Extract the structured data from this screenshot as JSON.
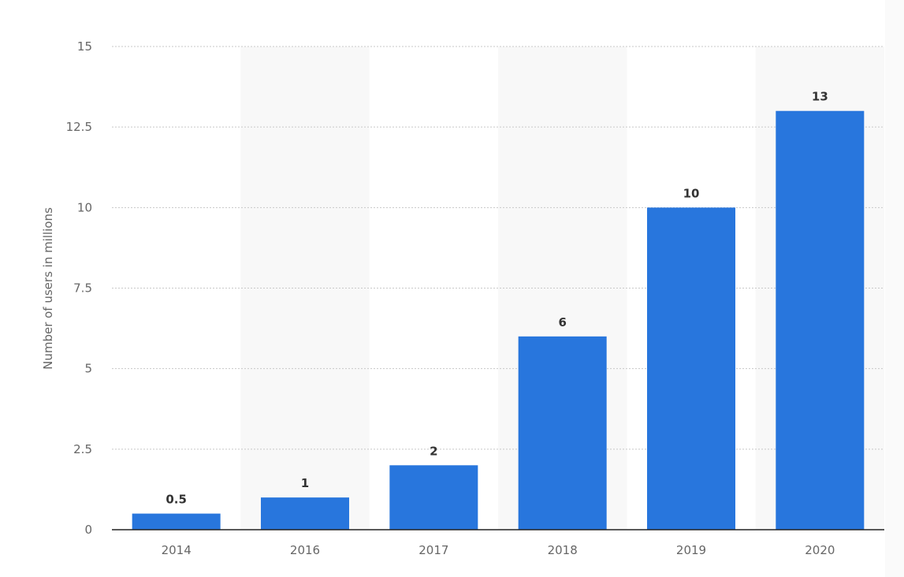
{
  "chart_data": {
    "type": "bar",
    "categories": [
      "2014",
      "2016",
      "2017",
      "2018",
      "2019",
      "2020"
    ],
    "values": [
      0.5,
      1,
      2,
      6,
      10,
      13
    ],
    "value_labels": [
      "0.5",
      "1",
      "2",
      "6",
      "10",
      "13"
    ],
    "title": "",
    "xlabel": "",
    "ylabel": "Number of users in millions",
    "ylim": [
      0,
      15
    ],
    "yticks": [
      0,
      2.5,
      5,
      7.5,
      10,
      12.5,
      15
    ],
    "ytick_labels": [
      "0",
      "2.5",
      "5",
      "7.5",
      "10",
      "12.5",
      "15"
    ],
    "grid": true,
    "colors": {
      "bar": "#2876dd",
      "grid": "#c8c8c8",
      "axis": "#222222",
      "band": "#f8f8f8",
      "tick_text": "#666666",
      "value_text": "#333333"
    }
  }
}
